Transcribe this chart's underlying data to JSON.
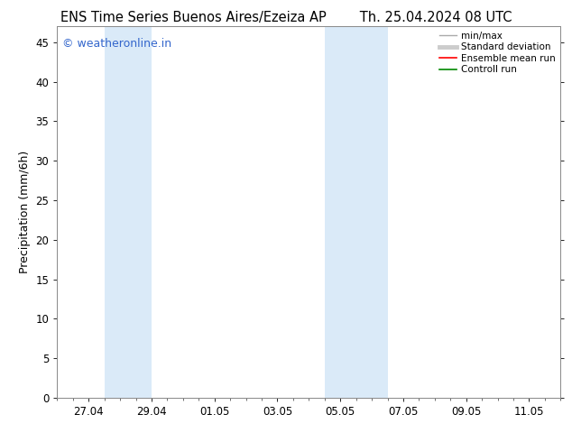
{
  "title": "ENS Time Series Buenos Aires/Ezeiza AP        Th. 25.04.2024 08 UTC",
  "ylabel": "Precipitation (mm/6h)",
  "ylim": [
    0,
    47
  ],
  "yticks": [
    0,
    5,
    10,
    15,
    20,
    25,
    30,
    35,
    40,
    45
  ],
  "xtick_labels": [
    "27.04",
    "29.04",
    "01.05",
    "03.05",
    "05.05",
    "07.05",
    "09.05",
    "11.05"
  ],
  "xtick_positions": [
    1,
    3,
    5,
    7,
    9,
    11,
    13,
    15
  ],
  "xlim": [
    0,
    16
  ],
  "shaded_regions": [
    {
      "xmin": 1.5,
      "xmax": 3.0,
      "color": "#daeaf8"
    },
    {
      "xmin": 8.5,
      "xmax": 10.5,
      "color": "#daeaf8"
    }
  ],
  "watermark_text": "© weatheronline.in",
  "watermark_color": "#3366cc",
  "legend_entries": [
    {
      "label": "min/max",
      "color": "#aaaaaa",
      "lw": 1.0
    },
    {
      "label": "Standard deviation",
      "color": "#cccccc",
      "lw": 3.5
    },
    {
      "label": "Ensemble mean run",
      "color": "#ff0000",
      "lw": 1.2
    },
    {
      "label": "Controll run",
      "color": "#008800",
      "lw": 1.2
    }
  ],
  "background_color": "#ffffff",
  "plot_bg_color": "#ffffff",
  "title_fontsize": 10.5,
  "axis_fontsize": 9,
  "tick_fontsize": 8.5,
  "legend_fontsize": 7.5
}
